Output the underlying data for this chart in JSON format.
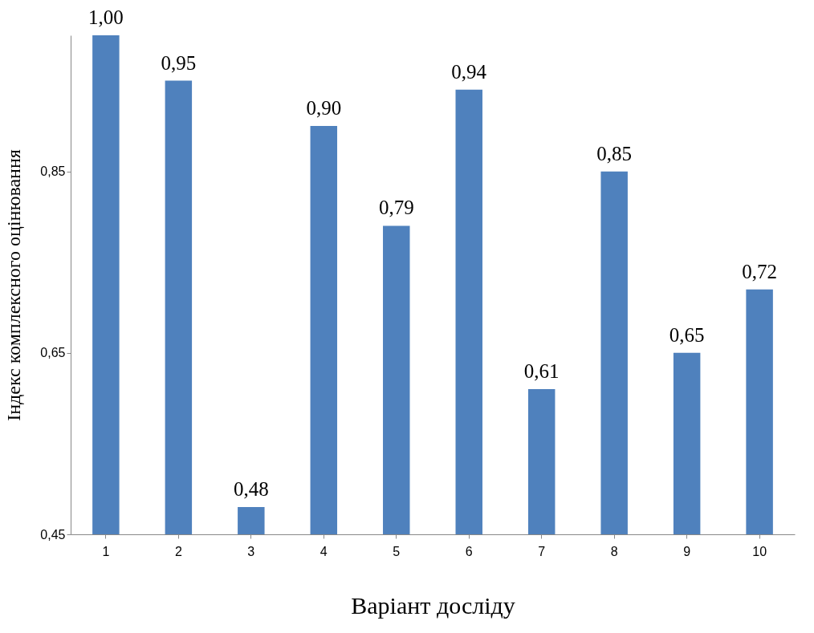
{
  "chart_data": {
    "type": "bar",
    "xlabel": "Варіант досліду",
    "ylabel": "Індекс комплексного оцінювання",
    "categories": [
      "1",
      "2",
      "3",
      "4",
      "5",
      "6",
      "7",
      "8",
      "9",
      "10"
    ],
    "values": [
      1.0,
      0.95,
      0.48,
      0.9,
      0.79,
      0.94,
      0.61,
      0.85,
      0.65,
      0.72
    ],
    "value_labels": [
      "1,00",
      "0,95",
      "0,48",
      "0,90",
      "0,79",
      "0,94",
      "0,61",
      "0,85",
      "0,65",
      "0,72"
    ],
    "color": "#4f81bd",
    "ylim": [
      0.45,
      1.0
    ],
    "yticks": [
      {
        "value": 0.45,
        "label": "0,45"
      },
      {
        "value": 0.65,
        "label": "0,65"
      },
      {
        "value": 0.85,
        "label": "0,85"
      }
    ],
    "grid": false
  }
}
